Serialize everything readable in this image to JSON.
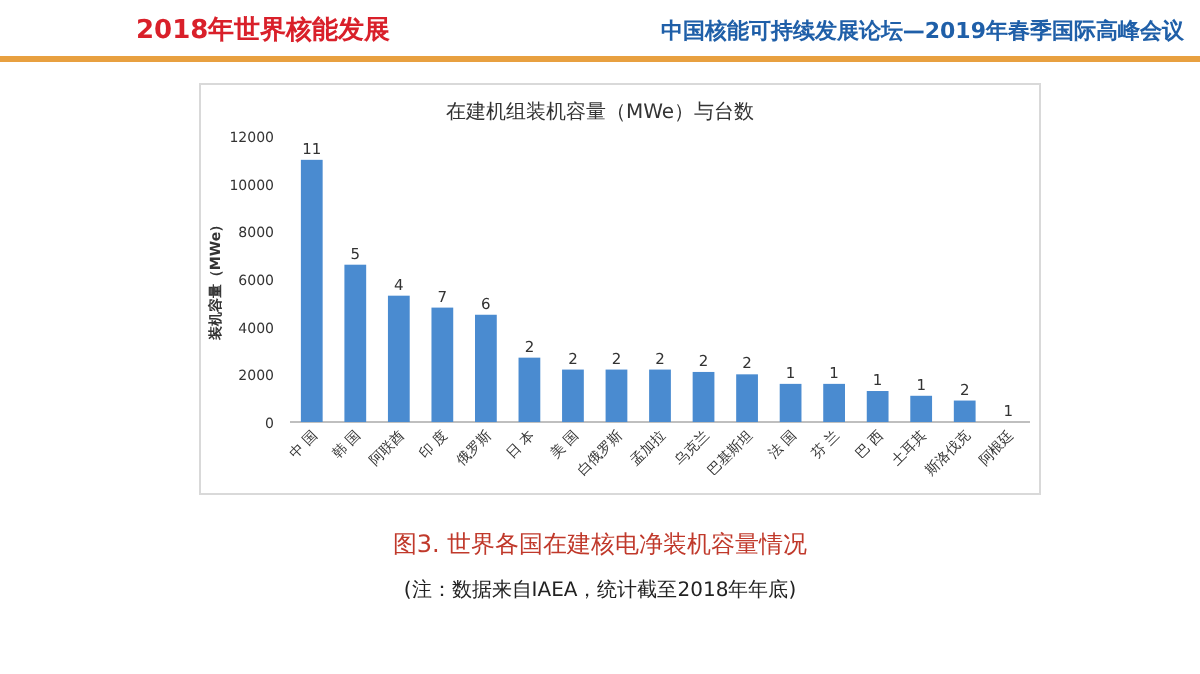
{
  "chart_data": {
    "type": "bar",
    "title": "在建机组装机容量（MWe）与台数",
    "ylabel": "装机容量（MWe）",
    "annotations": [
      "2018年世界核能发展",
      "中国核能可持续发展论坛—2019年春季国际高峰会议",
      "图3. 世界各国在建核电净装机容量情况",
      "(注：数据来自IAEA，统计截至2018年年底)",
      {
        "text": "11",
        "x": "中 国",
        "y": 11000
      },
      {
        "text": "5",
        "x": "韩 国",
        "y": 6600
      },
      {
        "text": "4",
        "x": "阿联酋",
        "y": 5300
      },
      {
        "text": "7",
        "x": "印 度",
        "y": 4800
      },
      {
        "text": "6",
        "x": "俄罗斯",
        "y": 4500
      },
      {
        "text": "2",
        "x": "日 本",
        "y": 2700
      },
      {
        "text": "2",
        "x": "美 国",
        "y": 2200
      },
      {
        "text": "2",
        "x": "白俄罗斯",
        "y": 2200
      },
      {
        "text": "2",
        "x": "孟加拉",
        "y": 2200
      },
      {
        "text": "2",
        "x": "乌克兰",
        "y": 2100
      },
      {
        "text": "2",
        "x": "巴基斯坦",
        "y": 2000
      },
      {
        "text": "1",
        "x": "法 国",
        "y": 1600
      },
      {
        "text": "1",
        "x": "芬 兰",
        "y": 1600
      },
      {
        "text": "1",
        "x": "巴 西",
        "y": 1300
      },
      {
        "text": "1",
        "x": "土耳其",
        "y": 1100
      },
      {
        "text": "2",
        "x": "斯洛伐克",
        "y": 900
      },
      {
        "text": "1",
        "x": "阿根廷",
        "y": 0
      }
    ],
    "categories": [
      "中 国",
      "韩 国",
      "阿联酋",
      "印 度",
      "俄罗斯",
      "日 本",
      "美 国",
      "白俄罗斯",
      "孟加拉",
      "乌克兰",
      "巴基斯坦",
      "法 国",
      "芬 兰",
      "巴 西",
      "土耳其",
      "斯洛伐克",
      "阿根廷"
    ],
    "values": [
      11000,
      6600,
      5300,
      4800,
      4500,
      2700,
      2200,
      2200,
      2200,
      2100,
      2000,
      1600,
      1600,
      1300,
      1100,
      900,
      0
    ],
    "color": "#4a8bd0",
    "ylim": [
      0,
      12000
    ],
    "yticks": [
      0,
      2000,
      4000,
      6000,
      8000,
      10000,
      12000
    ]
  }
}
